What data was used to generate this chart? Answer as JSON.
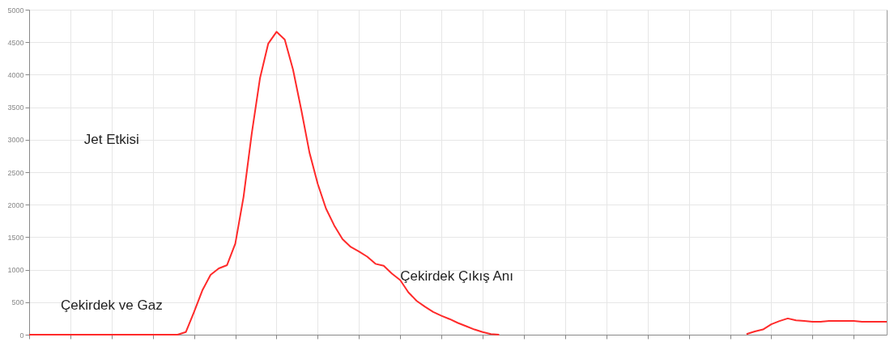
{
  "chart_data": {
    "type": "line",
    "categories": [
      null,
      null,
      null,
      null,
      null,
      null,
      null,
      null,
      null,
      null,
      null,
      null,
      null,
      null,
      null,
      null,
      null,
      null,
      null,
      null,
      null,
      null,
      null,
      null,
      null,
      null,
      null,
      null,
      null,
      null,
      null,
      null,
      null,
      null,
      null,
      null,
      null,
      null,
      null,
      null,
      null,
      null,
      null,
      null,
      null,
      null,
      null,
      null,
      null,
      null,
      null,
      null,
      null,
      null,
      null,
      null,
      null,
      null,
      null,
      null,
      null,
      null,
      null,
      null,
      null,
      null,
      null,
      null,
      null,
      null,
      null,
      null,
      null,
      null,
      null,
      null,
      null,
      null,
      null,
      null,
      null,
      null,
      null,
      null,
      null,
      null,
      null,
      null,
      null,
      null,
      null,
      null,
      null,
      null,
      null,
      null,
      null,
      null,
      null,
      null,
      null,
      null,
      null,
      null,
      null
    ],
    "series": [
      {
        "color": "#ff2a2a",
        "values": [
          0,
          0,
          0,
          0,
          0,
          0,
          0,
          0,
          0,
          0,
          0,
          0,
          0,
          0,
          0,
          0,
          0,
          0,
          0,
          40,
          350,
          680,
          920,
          1020,
          1070,
          1400,
          2120,
          3100,
          3950,
          4480,
          4660,
          4540,
          4080,
          3460,
          2800,
          2320,
          1940,
          1680,
          1470,
          1350,
          1280,
          1200,
          1090,
          1060,
          940,
          840,
          650,
          520,
          430,
          350,
          290,
          240,
          180,
          130,
          80,
          40,
          10,
          0,
          null,
          null,
          null,
          null,
          null,
          null,
          null,
          null,
          null,
          null,
          null,
          null,
          null,
          null,
          null,
          null,
          null,
          null,
          null,
          null,
          null,
          null,
          null,
          null,
          null,
          null,
          null,
          null,
          null,
          null,
          null,
          null,
          null,
          null,
          null,
          null,
          null,
          null,
          null,
          null,
          null,
          null,
          null,
          null,
          null,
          null,
          null
        ]
      },
      {
        "color": "#ff2a2a",
        "values": [
          null,
          null,
          null,
          null,
          null,
          null,
          null,
          null,
          null,
          null,
          null,
          null,
          null,
          null,
          null,
          null,
          null,
          null,
          null,
          null,
          null,
          null,
          null,
          null,
          null,
          null,
          null,
          null,
          null,
          null,
          null,
          null,
          null,
          null,
          null,
          null,
          null,
          null,
          null,
          null,
          null,
          null,
          null,
          null,
          null,
          null,
          null,
          null,
          null,
          null,
          null,
          null,
          null,
          null,
          null,
          null,
          null,
          null,
          null,
          null,
          null,
          null,
          null,
          null,
          null,
          null,
          null,
          null,
          null,
          null,
          null,
          null,
          null,
          null,
          null,
          null,
          null,
          null,
          null,
          null,
          null,
          null,
          null,
          null,
          null,
          null,
          null,
          10,
          50,
          80,
          160,
          210,
          250,
          220,
          210,
          200,
          200,
          210,
          210,
          210,
          210,
          200,
          200,
          200,
          200
        ]
      }
    ],
    "ylim": [
      0,
      5000
    ],
    "yticks": [
      0,
      500,
      1000,
      1500,
      2000,
      2500,
      3000,
      3500,
      4000,
      4500,
      5000
    ],
    "grid": true,
    "tick_labels": "y",
    "marker": "none",
    "line_style": "solid",
    "annotations": [
      "Jet Etkisi",
      "Çekirdek ve Gaz",
      "Çekirdek Çıkış Anı"
    ]
  }
}
